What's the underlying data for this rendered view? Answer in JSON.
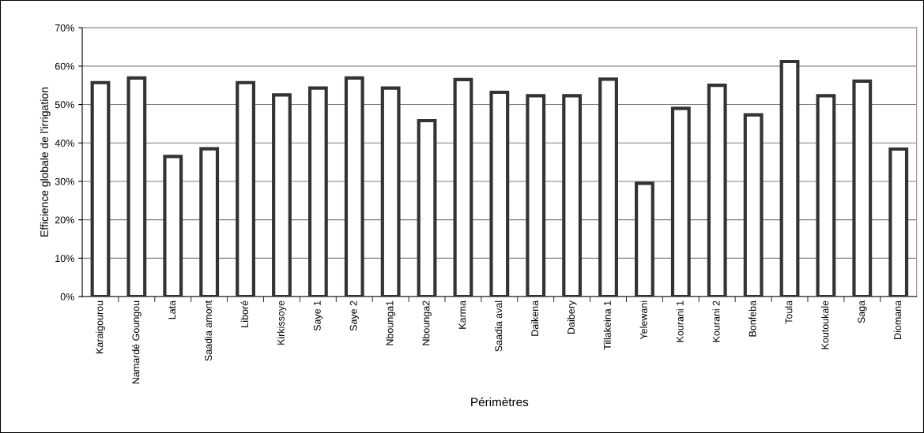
{
  "chart_data": {
    "type": "bar",
    "xlabel": "Périmètres",
    "ylabel": "Efficience globale de l'irrigation",
    "categories": [
      "Karaigourou",
      "Namardé Goungou",
      "Lata",
      "Saadia amont",
      "Liboré",
      "Kirkissoye",
      "Saye 1",
      "Saye 2",
      "Nbounga1",
      "Nbounga2",
      "Karma",
      "Saadia aval",
      "Daikena",
      "Daibery",
      "Tillakeina 1",
      "Yelewani",
      "Kourani 1",
      "Kourani 2",
      "Bonfeba",
      "Toula",
      "Koutoukale",
      "Saga",
      "Diomana"
    ],
    "series": [
      {
        "color": "#ffffff",
        "values": [
          55.7,
          56.9,
          36.5,
          38.5,
          55.7,
          52.5,
          54.3,
          56.9,
          54.3,
          45.8,
          56.5,
          53.2,
          52.3,
          52.3,
          56.6,
          29.5,
          49.0,
          55.0,
          47.3,
          61.2,
          52.3,
          56.1,
          38.4
        ]
      }
    ],
    "ylim": [
      0,
      70
    ],
    "yticks": [
      {
        "value": 0,
        "label": "0%"
      },
      {
        "value": 10,
        "label": "10%"
      },
      {
        "value": 20,
        "label": "20%"
      },
      {
        "value": 30,
        "label": "30%"
      },
      {
        "value": 40,
        "label": "40%"
      },
      {
        "value": 50,
        "label": "50%"
      },
      {
        "value": 60,
        "label": "60%"
      },
      {
        "value": 70,
        "label": "70%"
      }
    ],
    "grid": "y",
    "legend": false
  }
}
